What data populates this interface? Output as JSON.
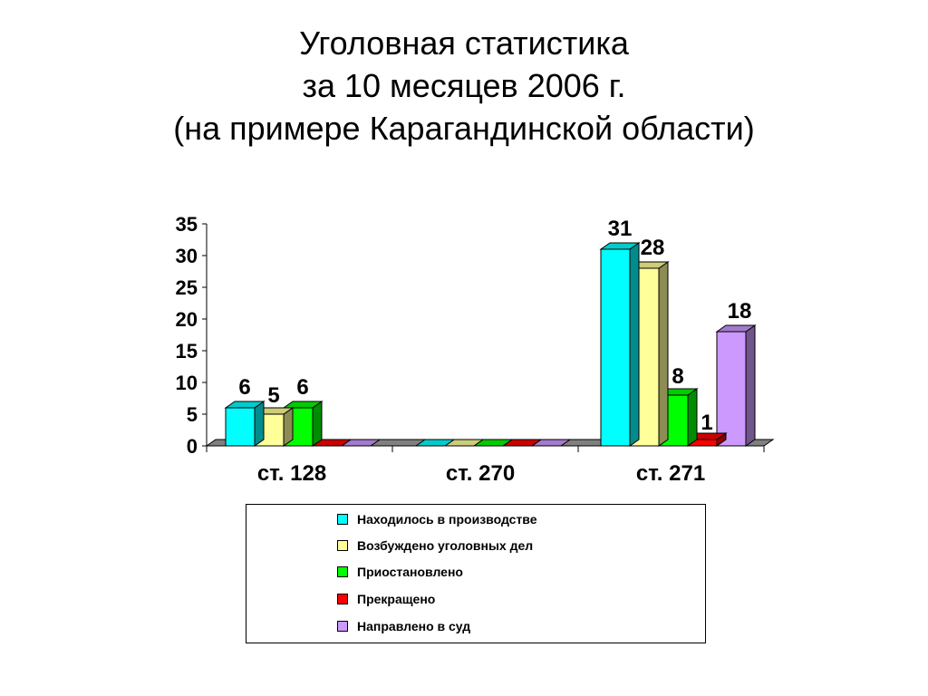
{
  "title": {
    "line1": "Уголовная статистика",
    "line2": "за 10 месяцев 2006 г.",
    "line3": "(на примере Карагандинской области)"
  },
  "chart_data": {
    "type": "bar",
    "three_d": true,
    "categories": [
      "ст. 128",
      "ст. 270",
      "ст. 271"
    ],
    "yticks": [
      0,
      5,
      10,
      15,
      20,
      25,
      30,
      35
    ],
    "ylim": [
      0,
      35
    ],
    "grid": false,
    "legend_position": "bottom",
    "series": [
      {
        "name": "Находилось в производстве",
        "color": "#00ffff",
        "values": [
          6,
          0,
          31
        ]
      },
      {
        "name": "Возбуждено уголовных дел",
        "color": "#ffff99",
        "values": [
          5,
          0,
          28
        ]
      },
      {
        "name": "Приостановлено",
        "color": "#00ff00",
        "values": [
          6,
          0,
          8
        ]
      },
      {
        "name": "Прекращено",
        "color": "#ff0000",
        "values": [
          0,
          0,
          1
        ]
      },
      {
        "name": "Направлено в суд",
        "color": "#cc99ff",
        "values": [
          0,
          0,
          18
        ]
      }
    ],
    "data_labels": [
      [
        "6",
        "",
        "31"
      ],
      [
        "5",
        "",
        "28"
      ],
      [
        "6",
        "",
        "8"
      ],
      [
        "",
        "",
        "1"
      ],
      [
        "",
        "",
        "18"
      ]
    ]
  }
}
